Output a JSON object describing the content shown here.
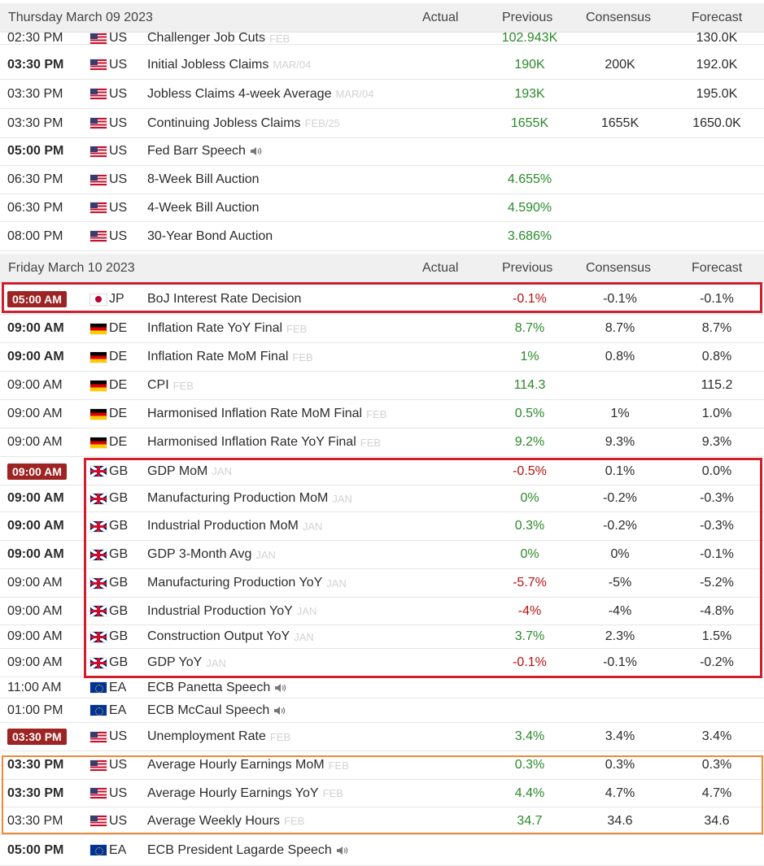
{
  "columns": {
    "actual": "Actual",
    "previous": "Previous",
    "consensus": "Consensus",
    "forecast": "Forecast"
  },
  "days": [
    {
      "date": "Thursday March 09 2023",
      "events": [
        {
          "time": "02:30 PM",
          "bold": false,
          "badge": false,
          "flag": "flag-us-icon",
          "country": "US",
          "event": "Challenger Job Cuts",
          "ref": "FEB",
          "speech": false,
          "previous": "102.943K",
          "previous_tone": "positive",
          "consensus": "",
          "forecast": "130.0K"
        },
        {
          "time": "03:30 PM",
          "bold": true,
          "badge": false,
          "flag": "flag-us-icon",
          "country": "US",
          "event": "Initial Jobless Claims",
          "ref": "MAR/04",
          "speech": false,
          "previous": "190K",
          "previous_tone": "positive",
          "consensus": "200K",
          "forecast": "192.0K"
        },
        {
          "time": "03:30 PM",
          "bold": false,
          "badge": false,
          "flag": "flag-us-icon",
          "country": "US",
          "event": "Jobless Claims 4-week Average",
          "ref": "MAR/04",
          "speech": false,
          "previous": "193K",
          "previous_tone": "positive",
          "consensus": "",
          "forecast": "195.0K"
        },
        {
          "time": "03:30 PM",
          "bold": false,
          "badge": false,
          "flag": "flag-us-icon",
          "country": "US",
          "event": "Continuing Jobless Claims",
          "ref": "FEB/25",
          "speech": false,
          "previous": "1655K",
          "previous_tone": "positive",
          "consensus": "1655K",
          "forecast": "1650.0K"
        },
        {
          "time": "05:00 PM",
          "bold": true,
          "badge": false,
          "flag": "flag-us-icon",
          "country": "US",
          "event": "Fed Barr Speech",
          "ref": "",
          "speech": true,
          "previous": "",
          "previous_tone": "positive",
          "consensus": "",
          "forecast": ""
        },
        {
          "time": "06:30 PM",
          "bold": false,
          "badge": false,
          "flag": "flag-us-icon",
          "country": "US",
          "event": "8-Week Bill Auction",
          "ref": "",
          "speech": false,
          "previous": "4.655%",
          "previous_tone": "positive",
          "consensus": "",
          "forecast": ""
        },
        {
          "time": "06:30 PM",
          "bold": false,
          "badge": false,
          "flag": "flag-us-icon",
          "country": "US",
          "event": "4-Week Bill Auction",
          "ref": "",
          "speech": false,
          "previous": "4.590%",
          "previous_tone": "positive",
          "consensus": "",
          "forecast": ""
        },
        {
          "time": "08:00 PM",
          "bold": false,
          "badge": false,
          "flag": "flag-us-icon",
          "country": "US",
          "event": "30-Year Bond Auction",
          "ref": "",
          "speech": false,
          "previous": "3.686%",
          "previous_tone": "positive",
          "consensus": "",
          "forecast": ""
        }
      ]
    },
    {
      "date": "Friday March 10 2023",
      "events": [
        {
          "time": "05:00 AM",
          "bold": true,
          "badge": true,
          "flag": "flag-jp-icon",
          "country": "JP",
          "event": "BoJ Interest Rate Decision",
          "ref": "",
          "speech": false,
          "previous": "-0.1%",
          "previous_tone": "negative",
          "consensus": "-0.1%",
          "forecast": "-0.1%"
        },
        {
          "time": "09:00 AM",
          "bold": true,
          "badge": false,
          "flag": "flag-de-icon",
          "country": "DE",
          "event": "Inflation Rate YoY Final",
          "ref": "FEB",
          "speech": false,
          "previous": "8.7%",
          "previous_tone": "positive",
          "consensus": "8.7%",
          "forecast": "8.7%"
        },
        {
          "time": "09:00 AM",
          "bold": true,
          "badge": false,
          "flag": "flag-de-icon",
          "country": "DE",
          "event": "Inflation Rate MoM Final",
          "ref": "FEB",
          "speech": false,
          "previous": "1%",
          "previous_tone": "positive",
          "consensus": "0.8%",
          "forecast": "0.8%"
        },
        {
          "time": "09:00 AM",
          "bold": false,
          "badge": false,
          "flag": "flag-de-icon",
          "country": "DE",
          "event": "CPI",
          "ref": "FEB",
          "speech": false,
          "previous": "114.3",
          "previous_tone": "positive",
          "consensus": "",
          "forecast": "115.2"
        },
        {
          "time": "09:00 AM",
          "bold": false,
          "badge": false,
          "flag": "flag-de-icon",
          "country": "DE",
          "event": "Harmonised Inflation Rate MoM Final",
          "ref": "FEB",
          "speech": false,
          "previous": "0.5%",
          "previous_tone": "positive",
          "consensus": "1%",
          "forecast": "1.0%"
        },
        {
          "time": "09:00 AM",
          "bold": false,
          "badge": false,
          "flag": "flag-de-icon",
          "country": "DE",
          "event": "Harmonised Inflation Rate YoY Final",
          "ref": "FEB",
          "speech": false,
          "previous": "9.2%",
          "previous_tone": "positive",
          "consensus": "9.3%",
          "forecast": "9.3%"
        },
        {
          "time": "09:00 AM",
          "bold": true,
          "badge": true,
          "flag": "flag-gb-icon",
          "country": "GB",
          "event": "GDP MoM",
          "ref": "JAN",
          "speech": false,
          "previous": "-0.5%",
          "previous_tone": "negative",
          "consensus": "0.1%",
          "forecast": "0.0%"
        },
        {
          "time": "09:00 AM",
          "bold": true,
          "badge": false,
          "flag": "flag-gb-icon",
          "country": "GB",
          "event": "Manufacturing Production MoM",
          "ref": "JAN",
          "speech": false,
          "previous": "0%",
          "previous_tone": "positive",
          "consensus": "-0.2%",
          "forecast": "-0.3%"
        },
        {
          "time": "09:00 AM",
          "bold": true,
          "badge": false,
          "flag": "flag-gb-icon",
          "country": "GB",
          "event": "Industrial Production MoM",
          "ref": "JAN",
          "speech": false,
          "previous": "0.3%",
          "previous_tone": "positive",
          "consensus": "-0.2%",
          "forecast": "-0.3%"
        },
        {
          "time": "09:00 AM",
          "bold": true,
          "badge": false,
          "flag": "flag-gb-icon",
          "country": "GB",
          "event": "GDP 3-Month Avg",
          "ref": "JAN",
          "speech": false,
          "previous": "0%",
          "previous_tone": "positive",
          "consensus": "0%",
          "forecast": "-0.1%"
        },
        {
          "time": "09:00 AM",
          "bold": false,
          "badge": false,
          "flag": "flag-gb-icon",
          "country": "GB",
          "event": "Manufacturing Production YoY",
          "ref": "JAN",
          "speech": false,
          "previous": "-5.7%",
          "previous_tone": "negative",
          "consensus": "-5%",
          "forecast": "-5.2%"
        },
        {
          "time": "09:00 AM",
          "bold": false,
          "badge": false,
          "flag": "flag-gb-icon",
          "country": "GB",
          "event": "Industrial Production YoY",
          "ref": "JAN",
          "speech": false,
          "previous": "-4%",
          "previous_tone": "negative",
          "consensus": "-4%",
          "forecast": "-4.8%"
        },
        {
          "time": "09:00 AM",
          "bold": false,
          "badge": false,
          "flag": "flag-gb-icon",
          "country": "GB",
          "event": "Construction Output YoY",
          "ref": "JAN",
          "speech": false,
          "previous": "3.7%",
          "previous_tone": "positive",
          "consensus": "2.3%",
          "forecast": "1.5%"
        },
        {
          "time": "09:00 AM",
          "bold": false,
          "badge": false,
          "flag": "flag-gb-icon",
          "country": "GB",
          "event": "GDP YoY",
          "ref": "JAN",
          "speech": false,
          "previous": "-0.1%",
          "previous_tone": "negative",
          "consensus": "-0.1%",
          "forecast": "-0.2%"
        },
        {
          "time": "11:00 AM",
          "bold": false,
          "badge": false,
          "flag": "flag-ea-icon",
          "country": "EA",
          "event": "ECB Panetta Speech",
          "ref": "",
          "speech": true,
          "previous": "",
          "previous_tone": "positive",
          "consensus": "",
          "forecast": ""
        },
        {
          "time": "01:00 PM",
          "bold": false,
          "badge": false,
          "flag": "flag-ea-icon",
          "country": "EA",
          "event": "ECB McCaul Speech",
          "ref": "",
          "speech": true,
          "previous": "",
          "previous_tone": "positive",
          "consensus": "",
          "forecast": ""
        },
        {
          "time": "03:30 PM",
          "bold": true,
          "badge": true,
          "flag": "flag-us-icon",
          "country": "US",
          "event": "Unemployment Rate",
          "ref": "FEB",
          "speech": false,
          "previous": "3.4%",
          "previous_tone": "positive",
          "consensus": "3.4%",
          "forecast": "3.4%"
        },
        {
          "time": "03:30 PM",
          "bold": true,
          "badge": false,
          "flag": "flag-us-icon",
          "country": "US",
          "event": "Average Hourly Earnings MoM",
          "ref": "FEB",
          "speech": false,
          "previous": "0.3%",
          "previous_tone": "positive",
          "consensus": "0.3%",
          "forecast": "0.3%"
        },
        {
          "time": "03:30 PM",
          "bold": true,
          "badge": false,
          "flag": "flag-us-icon",
          "country": "US",
          "event": "Average Hourly Earnings YoY",
          "ref": "FEB",
          "speech": false,
          "previous": "4.4%",
          "previous_tone": "positive",
          "consensus": "4.7%",
          "forecast": "4.7%"
        },
        {
          "time": "03:30 PM",
          "bold": false,
          "badge": false,
          "flag": "flag-us-icon",
          "country": "US",
          "event": "Average Weekly Hours",
          "ref": "FEB",
          "speech": false,
          "previous": "34.7",
          "previous_tone": "positive",
          "consensus": "34.6",
          "forecast": "34.6"
        },
        {
          "time": "05:00 PM",
          "bold": true,
          "badge": false,
          "flag": "flag-ea-icon",
          "country": "EA",
          "event": "ECB President Lagarde Speech",
          "ref": "",
          "speech": true,
          "previous": "",
          "previous_tone": "positive",
          "consensus": "",
          "forecast": ""
        }
      ]
    }
  ],
  "colors": {
    "positive": "#2a8a2a",
    "negative": "#b81212",
    "badge": "#9e2424",
    "highlight_red": "#cf1f2e",
    "highlight_orange": "#ee8a3a",
    "reference": "#d2d2d2"
  },
  "icons": {
    "speech": "speaker-icon"
  }
}
